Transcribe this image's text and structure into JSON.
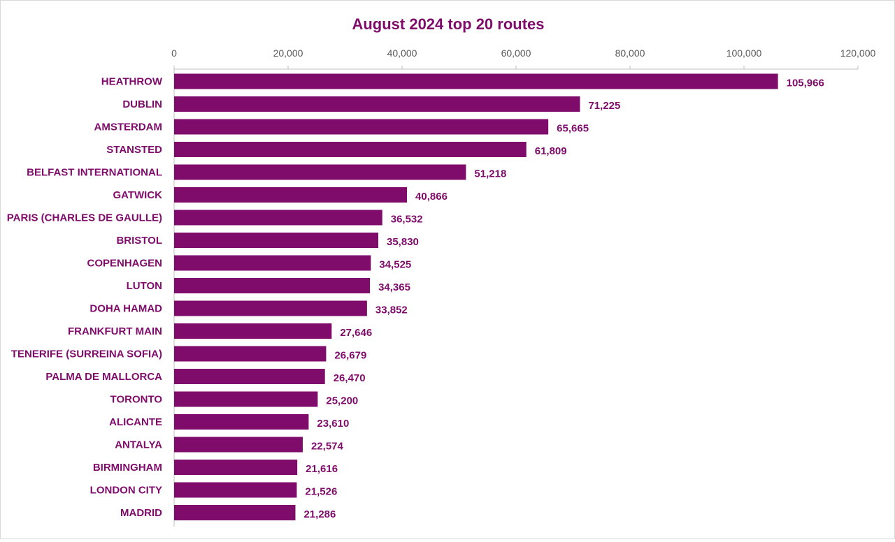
{
  "chart_data": {
    "type": "bar",
    "orientation": "horizontal",
    "title": "August 2024 top 20 routes",
    "xlabel": "",
    "ylabel": "",
    "xlim": [
      0,
      120000
    ],
    "xticks": [
      0,
      20000,
      40000,
      60000,
      80000,
      100000,
      120000
    ],
    "xtick_labels": [
      "0",
      "20,000",
      "40,000",
      "60,000",
      "80,000",
      "100,000",
      "120,000"
    ],
    "axis_position": "top",
    "grid": false,
    "legend": "none",
    "bar_color": "#7f0c6b",
    "text_color": "#7f0c6b",
    "categories": [
      "HEATHROW",
      "DUBLIN",
      "AMSTERDAM",
      "STANSTED",
      "BELFAST INTERNATIONAL",
      "GATWICK",
      "PARIS (CHARLES DE GAULLE)",
      "BRISTOL",
      "COPENHAGEN",
      "LUTON",
      "DOHA HAMAD",
      "FRANKFURT MAIN",
      "TENERIFE (SURREINA SOFIA)",
      "PALMA DE MALLORCA",
      "TORONTO",
      "ALICANTE",
      "ANTALYA",
      "BIRMINGHAM",
      "LONDON CITY",
      "MADRID"
    ],
    "values": [
      105966,
      71225,
      65665,
      61809,
      51218,
      40866,
      36532,
      35830,
      34525,
      34365,
      33852,
      27646,
      26679,
      26470,
      25200,
      23610,
      22574,
      21616,
      21526,
      21286
    ],
    "value_labels": [
      "105,966",
      "71,225",
      "65,665",
      "61,809",
      "51,218",
      "40,866",
      "36,532",
      "35,830",
      "34,525",
      "34,365",
      "33,852",
      "27,646",
      "26,679",
      "26,470",
      "25,200",
      "23,610",
      "22,574",
      "21,616",
      "21,526",
      "21,286"
    ]
  }
}
